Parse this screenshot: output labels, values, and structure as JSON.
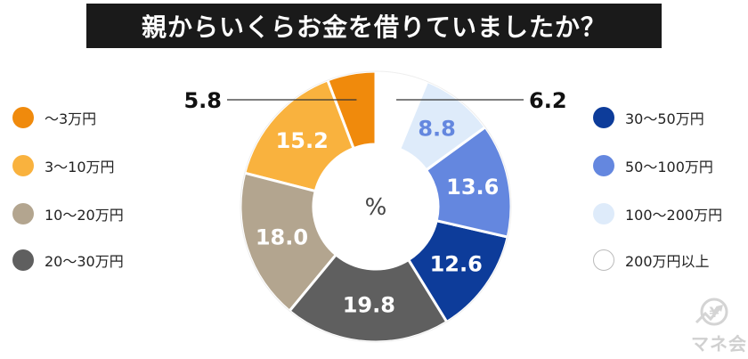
{
  "chart_data": {
    "type": "pie",
    "title": "親からいくらお金を借りていましたか？",
    "center_label": "%",
    "slices": [
      {
        "label": "〜3万円",
        "value": 5.8,
        "color": "#f08a0c"
      },
      {
        "label": "3〜10万円",
        "value": 15.2,
        "color": "#f9b23e"
      },
      {
        "label": "10〜20万円",
        "value": 18.0,
        "color": "#b3a58f"
      },
      {
        "label": "20〜30万円",
        "value": 19.8,
        "color": "#5f5f5f"
      },
      {
        "label": "30〜50万円",
        "value": 12.6,
        "color": "#0d3c9a"
      },
      {
        "label": "50〜100万円",
        "value": 13.6,
        "color": "#6487df"
      },
      {
        "label": "100〜200万円",
        "value": 8.8,
        "color": "#deebfa"
      },
      {
        "label": "200万円以上",
        "value": 6.2,
        "color": "#ffffff"
      }
    ]
  },
  "brand": {
    "logo_text": "マネ会"
  }
}
